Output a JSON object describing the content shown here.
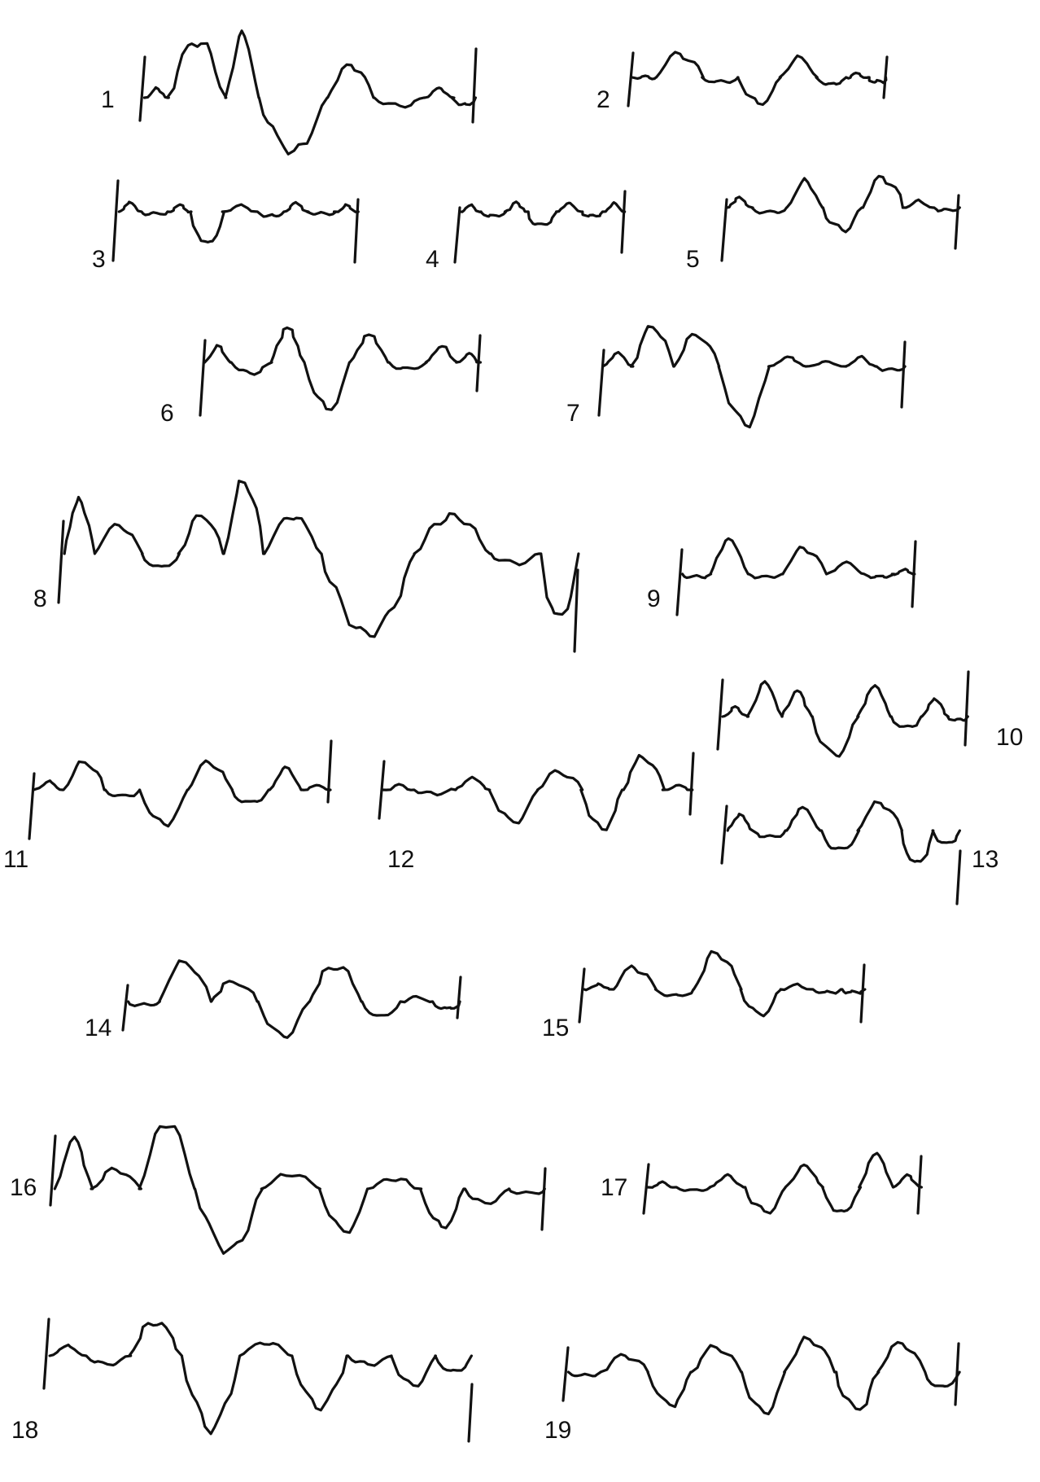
{
  "figures": [
    {
      "label": "1"
    },
    {
      "label": "2"
    },
    {
      "label": "3"
    },
    {
      "label": "4"
    },
    {
      "label": "5"
    },
    {
      "label": "6"
    },
    {
      "label": "7"
    },
    {
      "label": "8"
    },
    {
      "label": "9"
    },
    {
      "label": "10"
    },
    {
      "label": "11"
    },
    {
      "label": "12"
    },
    {
      "label": "13"
    },
    {
      "label": "14"
    },
    {
      "label": "15"
    },
    {
      "label": "16"
    },
    {
      "label": "17"
    },
    {
      "label": "18"
    },
    {
      "label": "19"
    }
  ],
  "colors": {
    "ink": "#111111",
    "paper": "#ffffff"
  }
}
